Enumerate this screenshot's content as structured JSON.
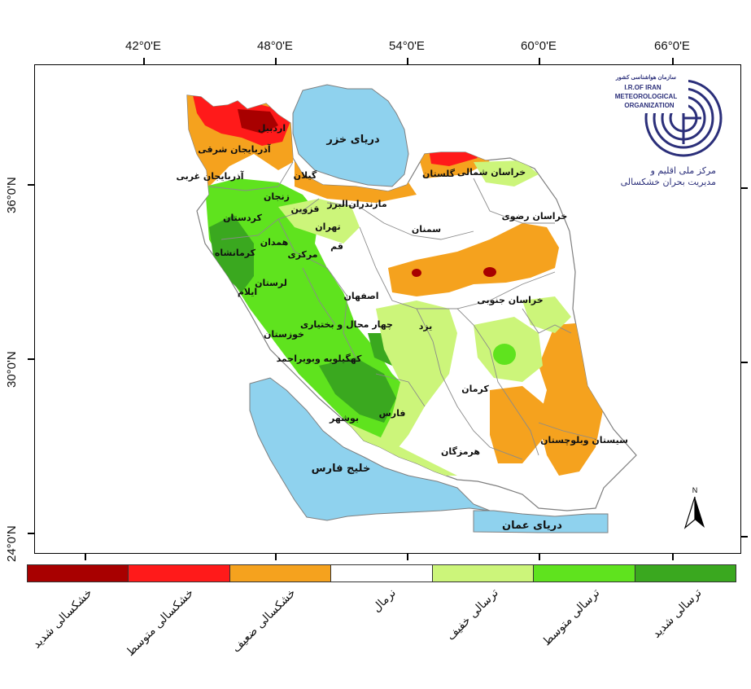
{
  "map": {
    "longitude_labels": [
      "42°0'E",
      "48°0'E",
      "54°0'E",
      "60°0'E",
      "66°0'E"
    ],
    "latitude_labels": [
      "36°0'N",
      "30°0'N",
      "24°0'N"
    ],
    "water_bodies": {
      "caspian": "دریای خزر",
      "persian_gulf": "خلیج فارس",
      "oman_sea": "دریای عمان"
    },
    "provinces": {
      "ardabil": "اردبیل",
      "east_azarbaijan": "آذربایجان شرقی",
      "west_azarbaijan": "آذربایجان غربی",
      "gilan": "گیلان",
      "golestan": "گلستان",
      "north_khorasan": "خراسان شمالی",
      "zanjan": "زنجان",
      "kurdistan": "کردستان",
      "qazvin": "قزوین",
      "alborz": "البرز",
      "mazandaran": "مازندران",
      "tehran": "تهران",
      "razavi_khorasan": "خراسان رضوی",
      "semnan": "سمنان",
      "hamadan": "همدان",
      "kermanshah": "کرمانشاه",
      "qom": "قم",
      "markazi": "مرکزی",
      "lorestan": "لرستان",
      "ilam": "ایلام",
      "isfahan": "اصفهان",
      "south_khorasan": "خراسان جنوبی",
      "chaharmahal": "چهار محال و بختیاری",
      "yazd": "یزد",
      "khuzestan": "خوزستان",
      "kohgiluyeh": "کهگیلویه وبویراحمد",
      "kerman": "کرمان",
      "fars": "فارس",
      "bushehr": "بوشهر",
      "sistan": "سیستان وبلوچستان",
      "hormozgan": "هرمزگان"
    },
    "north_arrow_label": "N"
  },
  "logo": {
    "arc_text": "سازمان هواشناسی کشور",
    "line1": "I.R.OF IRAN",
    "line2": "METEOROLOGICAL",
    "line3": "ORGANIZATION",
    "center_line1": "مرکز ملی اقلیم و",
    "center_line2": "مدیریت بحران خشکسالی"
  },
  "legend": {
    "classes": [
      {
        "label": "خشکسالی شدید",
        "color": "#a80000"
      },
      {
        "label": "خشکسالی متوسط",
        "color": "#ff1a1a"
      },
      {
        "label": "خشکسالی ضعیف",
        "color": "#f5a21e"
      },
      {
        "label": "نرمال",
        "color": "#ffffff"
      },
      {
        "label": "ترسالی خفیف",
        "color": "#ccf57a"
      },
      {
        "label": "ترسالی متوسط",
        "color": "#5fe31e"
      },
      {
        "label": "ترسالی شدید",
        "color": "#3aa81f"
      }
    ]
  },
  "colors": {
    "water": "#8fd2ee",
    "border": "#7f7f7f",
    "logo": "#2b2f7a"
  }
}
